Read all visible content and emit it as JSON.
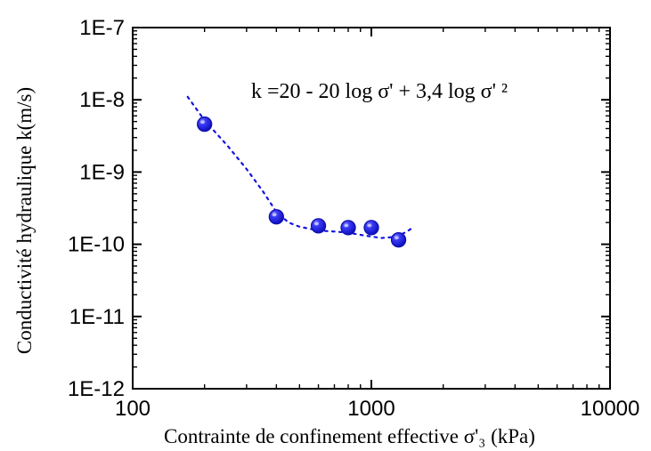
{
  "chart_data": {
    "type": "scatter",
    "title": "",
    "xlabel": "Contrainte de confinement effective σ'₃ (kPa)",
    "ylabel": "Conductivité hydraulique  k(m/s)",
    "x_scale": "log",
    "y_scale": "log",
    "xlim": [
      100,
      10000
    ],
    "ylim": [
      1e-12,
      1e-07
    ],
    "x_ticks": [
      {
        "value": 100,
        "label": "100"
      },
      {
        "value": 1000,
        "label": "1000"
      },
      {
        "value": 10000,
        "label": "10000"
      }
    ],
    "y_ticks": [
      {
        "value": 1e-07,
        "label": "1E-7"
      },
      {
        "value": 1e-08,
        "label": "1E-8"
      },
      {
        "value": 1e-09,
        "label": "1E-9"
      },
      {
        "value": 1e-10,
        "label": "1E-10"
      },
      {
        "value": 1e-11,
        "label": "1E-11"
      },
      {
        "value": 1e-12,
        "label": "1E-12"
      }
    ],
    "grid": false,
    "series": [
      {
        "kind": "markers",
        "x": [
          200,
          400,
          600,
          800,
          1000,
          1300
        ],
        "y": [
          4.6e-09,
          2.4e-10,
          1.8e-10,
          1.7e-10,
          1.7e-10,
          1.15e-10
        ],
        "color": "#1414e0"
      },
      {
        "kind": "dotted-fit",
        "x": [
          170,
          200,
          250,
          300,
          350,
          400,
          450,
          500,
          600,
          700,
          800,
          900,
          1000,
          1100,
          1200,
          1300,
          1400,
          1500
        ],
        "y": [
          1.1e-08,
          5.2e-09,
          2.3e-09,
          1.1e-09,
          5.5e-10,
          2.8e-10,
          2e-10,
          1.75e-10,
          1.55e-10,
          1.5e-10,
          1.45e-10,
          1.35e-10,
          1.28e-10,
          1.22e-10,
          1.25e-10,
          1.32e-10,
          1.48e-10,
          1.72e-10
        ],
        "color": "#1414e0"
      }
    ],
    "annotation": {
      "text": "k =20 - 20 log σ' + 3,4 log σ' ²"
    }
  }
}
